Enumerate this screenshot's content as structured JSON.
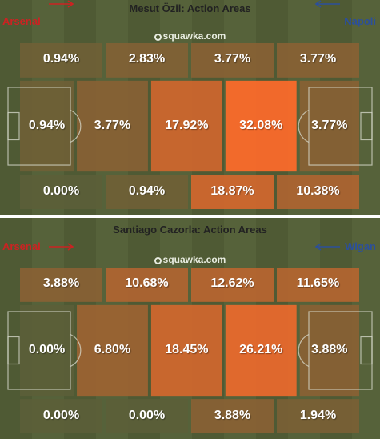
{
  "colors": {
    "pitch": "#4f5a34",
    "pitch_stripe": "#56623a",
    "lines": "#d9dccf",
    "team_left": "#cc2222",
    "team_right": "#2b4f9c",
    "low": "#5b5e38",
    "high": "#ff6a2a"
  },
  "icons": [
    "squawka-logo-icon",
    "arrow-right-icon",
    "arrow-left-icon"
  ],
  "chart_data": [
    {
      "type": "heatmap",
      "title": "Mesut Özil: Action Areas",
      "team_left": "Arsenal",
      "team_right": "Napoli",
      "brand": "squawka.com",
      "rows": [
        [
          "0.94%",
          "2.83%",
          "3.77%",
          "3.77%"
        ],
        [
          "0.94%",
          "3.77%",
          "17.92%",
          "32.08%",
          "3.77%"
        ],
        [
          "0.00%",
          "0.94%",
          "18.87%",
          "10.38%"
        ]
      ],
      "values": [
        [
          0.94,
          2.83,
          3.77,
          3.77
        ],
        [
          0.94,
          3.77,
          17.92,
          32.08,
          3.77
        ],
        [
          0.0,
          0.94,
          18.87,
          10.38
        ]
      ]
    },
    {
      "type": "heatmap",
      "title": "Santiago Cazorla: Action Areas",
      "team_left": "Arsenal",
      "team_right": "Wigan",
      "brand": "squawka.com",
      "rows": [
        [
          "3.88%",
          "10.68%",
          "12.62%",
          "11.65%"
        ],
        [
          "0.00%",
          "6.80%",
          "18.45%",
          "26.21%",
          "3.88%"
        ],
        [
          "0.00%",
          "0.00%",
          "3.88%",
          "1.94%"
        ]
      ],
      "values": [
        [
          3.88,
          10.68,
          12.62,
          11.65
        ],
        [
          0.0,
          6.8,
          18.45,
          26.21,
          3.88
        ],
        [
          0.0,
          0.0,
          3.88,
          1.94
        ]
      ]
    }
  ]
}
